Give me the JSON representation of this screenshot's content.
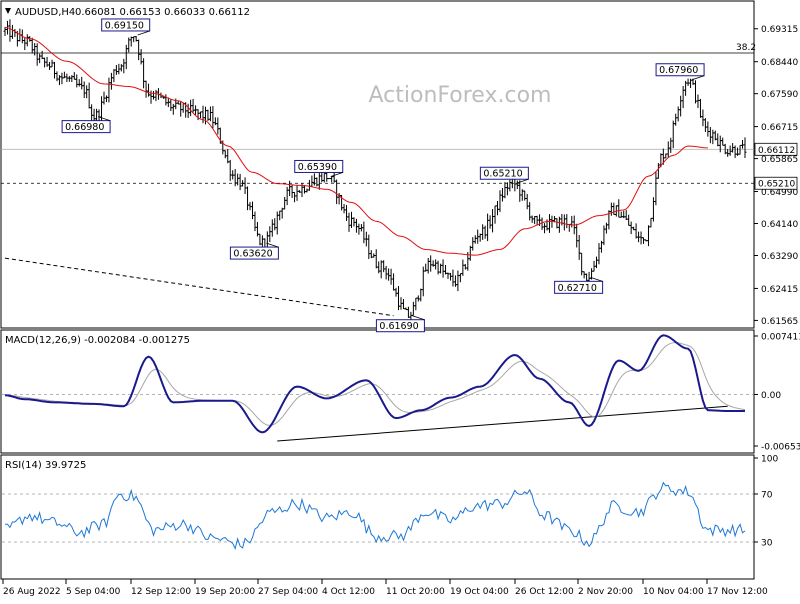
{
  "chart_data": {
    "type": "candlestick",
    "colors": {
      "candles": "#000000",
      "ema": "#e01010",
      "macd_line": "#1a1a8c",
      "macd_signal": "#a8a8a8",
      "rsi_line": "#1e78d6",
      "grid_line": "#b4b4b4",
      "trend_line": "#000000",
      "watermark": "#bdbdbd"
    },
    "main": {
      "symbol_label": "AUDUSD,H4",
      "ohlc_text": "0.66081 0.66153 0.66033 0.66112",
      "watermark": "ActionForex.com",
      "ylim": [
        0.6147,
        0.6976
      ],
      "y_ticks": [
        "0.69315",
        "0.68440",
        "0.67590",
        "0.66715",
        "0.65865",
        "0.64990",
        "0.64140",
        "0.63290",
        "0.62415",
        "0.61565"
      ],
      "current_price": "0.66112",
      "support_price": "0.65210",
      "fib_label": "38.2",
      "fib_level": 0.6867,
      "support_level": 0.6521,
      "current_level": 0.66112,
      "ema_points": [
        {
          "bar": 0,
          "price": 0.6935
        },
        {
          "bar": 10,
          "price": 0.6905
        },
        {
          "bar": 25,
          "price": 0.6845
        },
        {
          "bar": 40,
          "price": 0.6785
        },
        {
          "bar": 50,
          "price": 0.6778
        },
        {
          "bar": 60,
          "price": 0.676
        },
        {
          "bar": 70,
          "price": 0.674
        },
        {
          "bar": 80,
          "price": 0.669
        },
        {
          "bar": 90,
          "price": 0.662
        },
        {
          "bar": 100,
          "price": 0.655
        },
        {
          "bar": 110,
          "price": 0.652
        },
        {
          "bar": 120,
          "price": 0.6515
        },
        {
          "bar": 130,
          "price": 0.6505
        },
        {
          "bar": 140,
          "price": 0.647
        },
        {
          "bar": 150,
          "price": 0.642
        },
        {
          "bar": 160,
          "price": 0.638
        },
        {
          "bar": 170,
          "price": 0.6345
        },
        {
          "bar": 180,
          "price": 0.6335
        },
        {
          "bar": 190,
          "price": 0.633
        },
        {
          "bar": 200,
          "price": 0.6345
        },
        {
          "bar": 210,
          "price": 0.64
        },
        {
          "bar": 220,
          "price": 0.642
        },
        {
          "bar": 230,
          "price": 0.641
        },
        {
          "bar": 240,
          "price": 0.6435
        },
        {
          "bar": 250,
          "price": 0.645
        },
        {
          "bar": 260,
          "price": 0.654
        },
        {
          "bar": 270,
          "price": 0.6595
        },
        {
          "bar": 276,
          "price": 0.662
        },
        {
          "bar": 284,
          "price": 0.6615
        }
      ],
      "price_anchors": [
        {
          "bar": 0,
          "price": 0.6925
        },
        {
          "bar": 8,
          "price": 0.69
        },
        {
          "bar": 16,
          "price": 0.684
        },
        {
          "bar": 24,
          "price": 0.68
        },
        {
          "bar": 32,
          "price": 0.677
        },
        {
          "bar": 36,
          "price": 0.6698
        },
        {
          "bar": 46,
          "price": 0.683
        },
        {
          "bar": 52,
          "price": 0.6915
        },
        {
          "bar": 58,
          "price": 0.676
        },
        {
          "bar": 70,
          "price": 0.672
        },
        {
          "bar": 82,
          "price": 0.67
        },
        {
          "bar": 94,
          "price": 0.653
        },
        {
          "bar": 104,
          "price": 0.6362
        },
        {
          "bar": 116,
          "price": 0.65
        },
        {
          "bar": 130,
          "price": 0.6539
        },
        {
          "bar": 140,
          "price": 0.642
        },
        {
          "bar": 152,
          "price": 0.63
        },
        {
          "bar": 163,
          "price": 0.6169
        },
        {
          "bar": 172,
          "price": 0.631
        },
        {
          "bar": 182,
          "price": 0.626
        },
        {
          "bar": 192,
          "price": 0.639
        },
        {
          "bar": 205,
          "price": 0.6521
        },
        {
          "bar": 216,
          "price": 0.641
        },
        {
          "bar": 228,
          "price": 0.642
        },
        {
          "bar": 235,
          "price": 0.6271
        },
        {
          "bar": 246,
          "price": 0.645
        },
        {
          "bar": 258,
          "price": 0.637
        },
        {
          "bar": 266,
          "price": 0.66
        },
        {
          "bar": 276,
          "price": 0.6796
        },
        {
          "bar": 284,
          "price": 0.666
        },
        {
          "bar": 292,
          "price": 0.6611
        }
      ],
      "annotations": [
        {
          "label": "0.69150",
          "bar": 52,
          "price": 0.6915,
          "side": "above"
        },
        {
          "label": "0.66980",
          "bar": 36,
          "price": 0.6698,
          "side": "below"
        },
        {
          "label": "0.65390",
          "bar": 130,
          "price": 0.6539,
          "side": "above"
        },
        {
          "label": "0.63620",
          "bar": 104,
          "price": 0.6362,
          "side": "below"
        },
        {
          "label": "0.61690",
          "bar": 163,
          "price": 0.6169,
          "side": "below"
        },
        {
          "label": "0.65210",
          "bar": 205,
          "price": 0.6521,
          "side": "above"
        },
        {
          "label": "0.62710",
          "bar": 235,
          "price": 0.6271,
          "side": "below"
        },
        {
          "label": "0.67960",
          "bar": 276,
          "price": 0.6796,
          "side": "above"
        }
      ],
      "trendline": {
        "from": {
          "bar": 0,
          "price": 0.6322
        },
        "to": {
          "bar": 157,
          "price": 0.6169
        }
      }
    },
    "macd": {
      "label": "MACD(12,26,9) -0.002084 -0.001275",
      "ylim": [
        -0.00653,
        0.00741
      ],
      "y_ticks": [
        "0.007411",
        "0.00",
        "-0.006532"
      ],
      "zero_value": 0.0,
      "anchors": [
        {
          "bar": 0,
          "value": -0.0001
        },
        {
          "bar": 8,
          "value": -0.0006
        },
        {
          "bar": 20,
          "value": -0.001
        },
        {
          "bar": 36,
          "value": -0.0012
        },
        {
          "bar": 48,
          "value": -0.0015
        },
        {
          "bar": 58,
          "value": 0.0048
        },
        {
          "bar": 68,
          "value": -0.001
        },
        {
          "bar": 80,
          "value": -0.0008
        },
        {
          "bar": 92,
          "value": -0.0008
        },
        {
          "bar": 104,
          "value": -0.0048
        },
        {
          "bar": 118,
          "value": 0.001
        },
        {
          "bar": 130,
          "value": -0.0005
        },
        {
          "bar": 146,
          "value": 0.0018
        },
        {
          "bar": 158,
          "value": -0.003
        },
        {
          "bar": 168,
          "value": -0.002
        },
        {
          "bar": 180,
          "value": -0.0004
        },
        {
          "bar": 192,
          "value": 0.001
        },
        {
          "bar": 206,
          "value": 0.005
        },
        {
          "bar": 216,
          "value": 0.002
        },
        {
          "bar": 228,
          "value": -0.001
        },
        {
          "bar": 236,
          "value": -0.004
        },
        {
          "bar": 248,
          "value": 0.0043
        },
        {
          "bar": 256,
          "value": 0.003
        },
        {
          "bar": 266,
          "value": 0.0075
        },
        {
          "bar": 276,
          "value": 0.0058
        },
        {
          "bar": 284,
          "value": -0.002
        },
        {
          "bar": 292,
          "value": -0.0021
        }
      ],
      "trendline": {
        "from": {
          "bar": 110,
          "value": -0.0059
        },
        "to": {
          "bar": 292,
          "value": -0.0015
        }
      }
    },
    "rsi": {
      "label": "RSI(14) 39.9725",
      "ylim": [
        0,
        100
      ],
      "y_ticks": [
        "100",
        "70",
        "30"
      ],
      "levels": [
        70,
        30
      ],
      "anchors": [
        {
          "bar": 0,
          "value": 40
        },
        {
          "bar": 10,
          "value": 52
        },
        {
          "bar": 20,
          "value": 46
        },
        {
          "bar": 30,
          "value": 38
        },
        {
          "bar": 40,
          "value": 45
        },
        {
          "bar": 46,
          "value": 70
        },
        {
          "bar": 52,
          "value": 68
        },
        {
          "bar": 60,
          "value": 40
        },
        {
          "bar": 72,
          "value": 45
        },
        {
          "bar": 84,
          "value": 33
        },
        {
          "bar": 96,
          "value": 28
        },
        {
          "bar": 108,
          "value": 55
        },
        {
          "bar": 118,
          "value": 62
        },
        {
          "bar": 130,
          "value": 50
        },
        {
          "bar": 140,
          "value": 55
        },
        {
          "bar": 150,
          "value": 35
        },
        {
          "bar": 160,
          "value": 35
        },
        {
          "bar": 170,
          "value": 55
        },
        {
          "bar": 180,
          "value": 48
        },
        {
          "bar": 190,
          "value": 60
        },
        {
          "bar": 200,
          "value": 62
        },
        {
          "bar": 210,
          "value": 72
        },
        {
          "bar": 218,
          "value": 52
        },
        {
          "bar": 228,
          "value": 40
        },
        {
          "bar": 236,
          "value": 30
        },
        {
          "bar": 246,
          "value": 60
        },
        {
          "bar": 256,
          "value": 55
        },
        {
          "bar": 266,
          "value": 75
        },
        {
          "bar": 276,
          "value": 72
        },
        {
          "bar": 284,
          "value": 40
        },
        {
          "bar": 292,
          "value": 40
        }
      ]
    },
    "x_axis": {
      "total_bars": 300,
      "labels": [
        {
          "bar": 0,
          "text": "26 Aug 2022"
        },
        {
          "bar": 34,
          "text": "5 Sep 04:00"
        },
        {
          "bar": 64,
          "text": "12 Sep 12:00"
        },
        {
          "bar": 94,
          "text": "19 Sep 20:00"
        },
        {
          "bar": 124,
          "text": "27 Sep 04:00"
        },
        {
          "bar": 154,
          "text": "4 Oct 12:00"
        },
        {
          "bar": 184,
          "text": "11 Oct 20:00"
        },
        {
          "bar": 214,
          "text": "19 Oct 04:00"
        },
        {
          "bar": 244,
          "text": "26 Oct 12:00"
        },
        {
          "bar": 274,
          "text": "2 Nov 20:00"
        },
        {
          "bar": 304,
          "text": "10 Nov 04:00"
        },
        {
          "bar": 334,
          "text": "17 Nov 12:00"
        }
      ]
    }
  }
}
